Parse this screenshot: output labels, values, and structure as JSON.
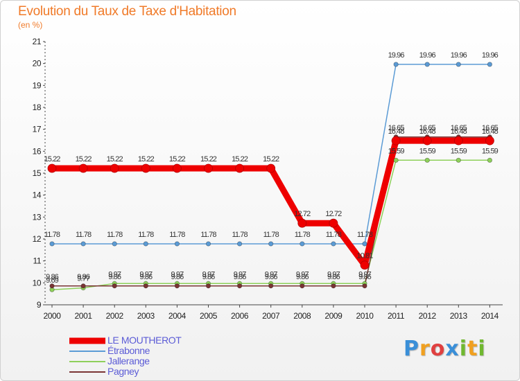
{
  "title": "Evolution du Taux de Taxe d'Habitation",
  "subtitle": "(en %)",
  "logo": {
    "text": "Proxiti",
    "letters": [
      {
        "ch": "P",
        "color": "#3a8fd8"
      },
      {
        "ch": "r",
        "color": "#f0a020"
      },
      {
        "ch": "o",
        "color": "#e04040"
      },
      {
        "ch": "x",
        "color": "#3a8fd8"
      },
      {
        "ch": "i",
        "color": "#70b830"
      },
      {
        "ch": "t",
        "color": "#f0a020"
      },
      {
        "ch": "i",
        "color": "#70b830"
      }
    ]
  },
  "chart_data": {
    "type": "line",
    "x": [
      2000,
      2001,
      2002,
      2003,
      2004,
      2005,
      2006,
      2007,
      2008,
      2009,
      2010,
      2011,
      2012,
      2013,
      2014
    ],
    "ylim": [
      9,
      21
    ],
    "yticks": [
      9,
      10,
      11,
      12,
      13,
      14,
      15,
      16,
      17,
      18,
      19,
      20,
      21
    ],
    "grid": false,
    "legend_position": "bottom-left",
    "series": [
      {
        "name": "LE MOUTHEROT",
        "color": "#ee0000",
        "width": 9,
        "values": [
          15.22,
          15.22,
          15.22,
          15.22,
          15.22,
          15.22,
          15.22,
          15.22,
          12.72,
          12.72,
          10.81,
          16.48,
          16.48,
          16.48,
          16.48
        ],
        "labels": [
          "15.22",
          "15.22",
          "15.22",
          "15.22",
          "15.22",
          "15.22",
          "15.22",
          "15.22",
          "12.72",
          "12.72",
          "10.81",
          "16.48",
          "16.48",
          "16.48",
          "16.48"
        ]
      },
      {
        "name": "Étrabonne",
        "color": "#5b9bd5",
        "width": 1.5,
        "values": [
          11.78,
          11.78,
          11.78,
          11.78,
          11.78,
          11.78,
          11.78,
          11.78,
          11.78,
          11.78,
          11.78,
          19.96,
          19.96,
          19.96,
          19.96
        ],
        "labels": [
          "11.78",
          "11.78",
          "11.78",
          "11.78",
          "11.78",
          "11.78",
          "11.78",
          "11.78",
          "11.78",
          "11.78",
          "11.78",
          "19.96",
          "19.96",
          "19.96",
          "19.96"
        ]
      },
      {
        "name": "Jallerange",
        "color": "#8ed05a",
        "width": 1.5,
        "values": [
          9.69,
          9.77,
          9.97,
          9.97,
          9.97,
          9.97,
          9.97,
          9.97,
          9.97,
          9.97,
          9.97,
          15.59,
          15.59,
          15.59,
          15.59
        ],
        "labels": [
          "9.69",
          "9.77",
          "9.97",
          "9.97",
          "9.97",
          "9.97",
          "9.97",
          "9.97",
          "9.97",
          "9.97",
          "9.97",
          "15.59",
          "15.59",
          "15.59",
          "15.59"
        ]
      },
      {
        "name": "Pagney",
        "color": "#7a3434",
        "width": 1.5,
        "values": [
          9.86,
          9.86,
          9.86,
          9.86,
          9.86,
          9.86,
          9.86,
          9.86,
          9.86,
          9.86,
          9.86,
          16.65,
          16.65,
          16.65,
          16.65
        ],
        "labels": [
          "9.86",
          "9.86",
          "9.86",
          "9.86",
          "9.86",
          "9.86",
          "9.86",
          "9.86",
          "9.86",
          "9.86",
          "9.86",
          "16.65",
          "16.65",
          "16.65",
          "16.65"
        ]
      }
    ]
  }
}
